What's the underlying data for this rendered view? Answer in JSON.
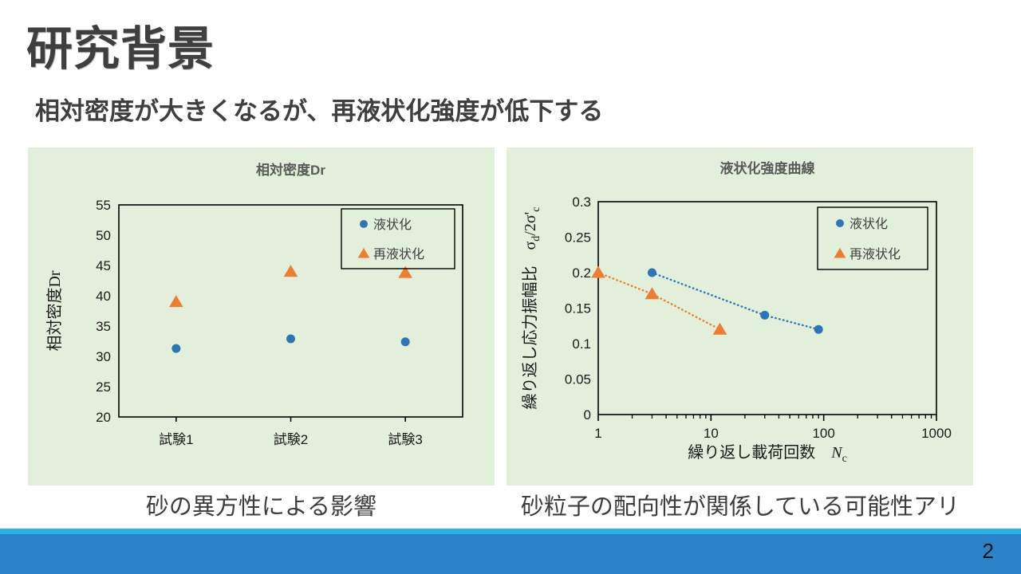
{
  "slide": {
    "title": "研究背景",
    "subtitle": "相対密度が大きくなるが、再液状化強度が低下する",
    "page_number": "2"
  },
  "captions": {
    "left": "砂の異方性による影響",
    "right": "砂粒子の配向性が関係している可能性アリ"
  },
  "colors": {
    "panel_bg": "#e2efda",
    "liquefaction_blue": "#2e75b6",
    "reliquefaction_orange": "#ed7d31",
    "chart_title_gray": "#595959",
    "axis_text": "#1a1a1a",
    "legend_text": "#404040",
    "footer_bar": "#2a84c7",
    "footer_strip": "#29b2e5",
    "plot_border": "#000000"
  },
  "chart_data": [
    {
      "type": "scatter",
      "title": "相対密度Dr",
      "ylabel": "相対密度Dr",
      "xlabel": "",
      "categories": [
        "試験1",
        "試験2",
        "試験3"
      ],
      "ylim": [
        20,
        55
      ],
      "ytick_step": 5,
      "grid": false,
      "legend_position": "top-right-inside",
      "series": [
        {
          "name": "液状化",
          "marker": "circle",
          "color_key": "liquefaction_blue",
          "values": [
            31.3,
            32.9,
            32.4
          ]
        },
        {
          "name": "再液状化",
          "marker": "triangle",
          "color_key": "reliquefaction_orange",
          "values": [
            39,
            44,
            43.8
          ]
        }
      ]
    },
    {
      "type": "scatter-log",
      "title": "液状化強度曲線",
      "ylabel_tokens": [
        {
          "t": "繰り返し応力振幅比　"
        },
        {
          "t": "σ"
        },
        {
          "t": "d",
          "sub": true
        },
        {
          "t": "/2σ'"
        },
        {
          "t": "c",
          "sub": true
        }
      ],
      "xlabel_tokens": [
        {
          "t": "繰り返し載荷回数　"
        },
        {
          "t": "N",
          "italic": true
        },
        {
          "t": "c",
          "sub": true
        }
      ],
      "xlim": [
        1,
        1000
      ],
      "ylim": [
        0,
        0.3
      ],
      "yticks": [
        0,
        0.05,
        0.1,
        0.15,
        0.2,
        0.25,
        0.3
      ],
      "xticks": [
        1,
        10,
        100,
        1000
      ],
      "grid": false,
      "legend_position": "top-right-inside",
      "line_style": "dotted",
      "series": [
        {
          "name": "液状化",
          "marker": "circle",
          "color_key": "liquefaction_blue",
          "points": [
            [
              3,
              0.2
            ],
            [
              30,
              0.14
            ],
            [
              90,
              0.12
            ]
          ]
        },
        {
          "name": "再液状化",
          "marker": "triangle",
          "color_key": "reliquefaction_orange",
          "points": [
            [
              1,
              0.2
            ],
            [
              3,
              0.17
            ],
            [
              12,
              0.12
            ]
          ]
        }
      ]
    }
  ]
}
